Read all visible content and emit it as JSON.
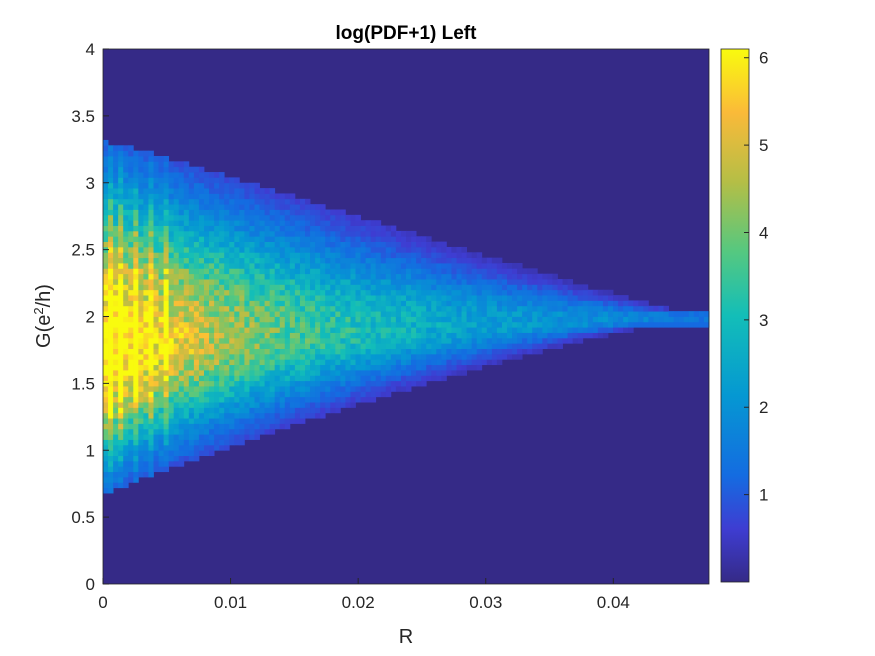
{
  "chart_data": {
    "type": "heatmap",
    "title": "log(PDF+1) Left",
    "xlabel": "R",
    "ylabel_parts": {
      "main": "G(e",
      "sup": "2",
      "tail": "/h)"
    },
    "xlim": [
      0,
      0.0475
    ],
    "ylim": [
      0,
      4
    ],
    "xticks": [
      0,
      0.01,
      0.02,
      0.03,
      0.04
    ],
    "xtick_labels": [
      "0",
      "0.01",
      "0.02",
      "0.03",
      "0.04"
    ],
    "yticks": [
      0,
      0.5,
      1,
      1.5,
      2,
      2.5,
      3,
      3.5,
      4
    ],
    "ytick_labels": [
      "0",
      "0.5",
      "1",
      "1.5",
      "2",
      "2.5",
      "3",
      "3.5",
      "4"
    ],
    "colorbar": {
      "colormap": "parula",
      "clim": [
        0,
        6.1
      ],
      "ticks": [
        1,
        2,
        3,
        4,
        5,
        6
      ],
      "tick_labels": [
        "1",
        "2",
        "3",
        "4",
        "5",
        "6"
      ]
    },
    "density_model": {
      "description": "approximate log(PDF+1) distribution of G vs R",
      "x_bins": 120,
      "y_bins": 100,
      "center_G_at_R0": 1.75,
      "center_G_at_Rmax": 2.0,
      "upper_edge_G_at_R0": 3.3,
      "lower_edge_G_at_R0": 0.65,
      "peak_value": 5.6,
      "tail_end_R": 0.0475,
      "bright_stripes_R": [
        0.0005,
        0.0015,
        0.0027,
        0.0038,
        0.0048
      ]
    },
    "colors": {
      "background": "#352A87",
      "low": "#3E3DD2",
      "mid": "#13BEB8",
      "high": "#FABA39",
      "max": "#F9FB0E"
    }
  }
}
